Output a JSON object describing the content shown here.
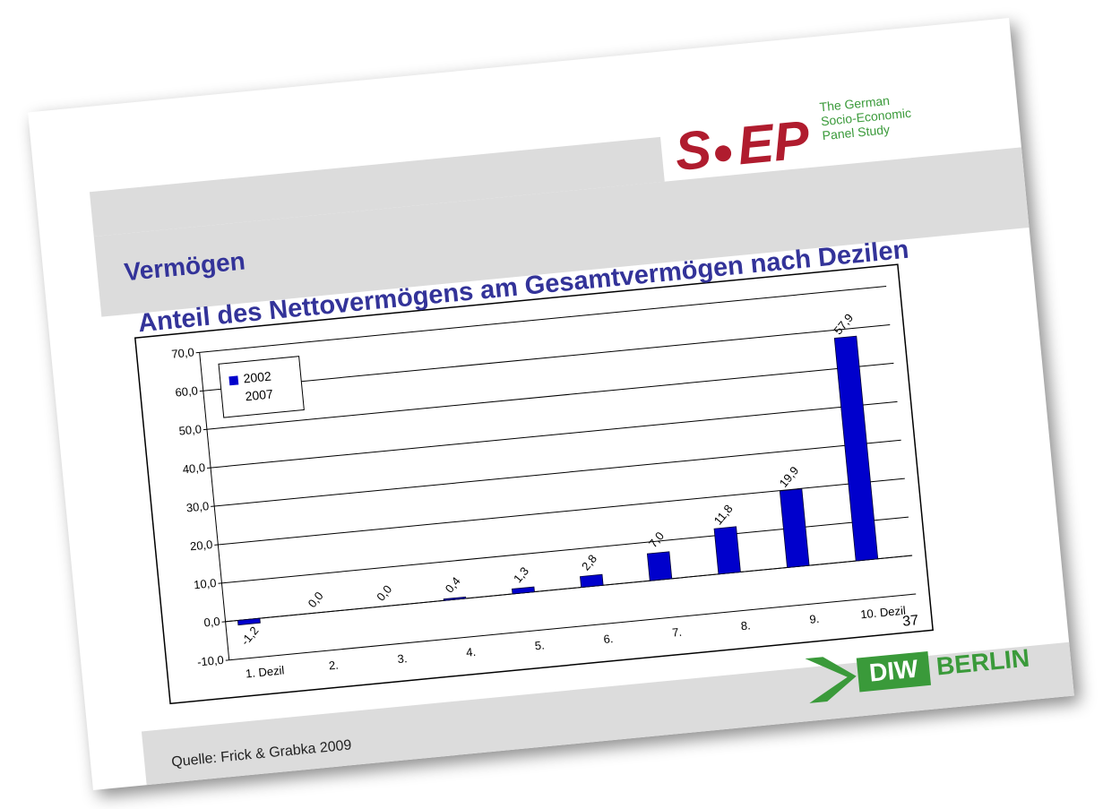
{
  "slide": {
    "heading": "Vermögen",
    "logo_left": "S",
    "logo_right": "EP",
    "logo_caption": [
      "The German",
      "Socio-Economic",
      "Panel Study"
    ],
    "page_number": "37",
    "source": "Quelle: Frick & Grabka 2009",
    "footer_logo": [
      "DIW",
      "BERLIN"
    ]
  },
  "chart_data": {
    "type": "bar",
    "title": "Anteil des Nettovermögens am Gesamtvermögen nach Dezilen",
    "categories": [
      "1. Dezil",
      "2.",
      "3.",
      "4.",
      "5.",
      "6.",
      "7.",
      "8.",
      "9.",
      "10. Dezil"
    ],
    "series": [
      {
        "name": "2002",
        "color": "#0000cc",
        "values": [
          -1.2,
          0.0,
          0.0,
          0.4,
          1.3,
          2.8,
          7.0,
          11.8,
          19.9,
          57.9
        ],
        "value_labels": [
          "-1,2",
          "0,0",
          "0,0",
          "0,4",
          "1,3",
          "2,8",
          "7,0",
          "11,8",
          "19,9",
          "57,9"
        ]
      },
      {
        "name": "2007",
        "color": "#ffffff",
        "values": [
          null,
          null,
          null,
          null,
          null,
          null,
          null,
          null,
          null,
          null
        ]
      }
    ],
    "ylim": [
      -10,
      70
    ],
    "yticks": [
      {
        "value": -10,
        "label": "-10,0"
      },
      {
        "value": 0,
        "label": "0,0"
      },
      {
        "value": 10,
        "label": "10,0"
      },
      {
        "value": 20,
        "label": "20,0"
      },
      {
        "value": 30,
        "label": "30,0"
      },
      {
        "value": 40,
        "label": "40,0"
      },
      {
        "value": 50,
        "label": "50,0"
      },
      {
        "value": 60,
        "label": "60,0"
      },
      {
        "value": 70,
        "label": "70,0"
      }
    ],
    "grid": true,
    "legend": "upper left"
  }
}
